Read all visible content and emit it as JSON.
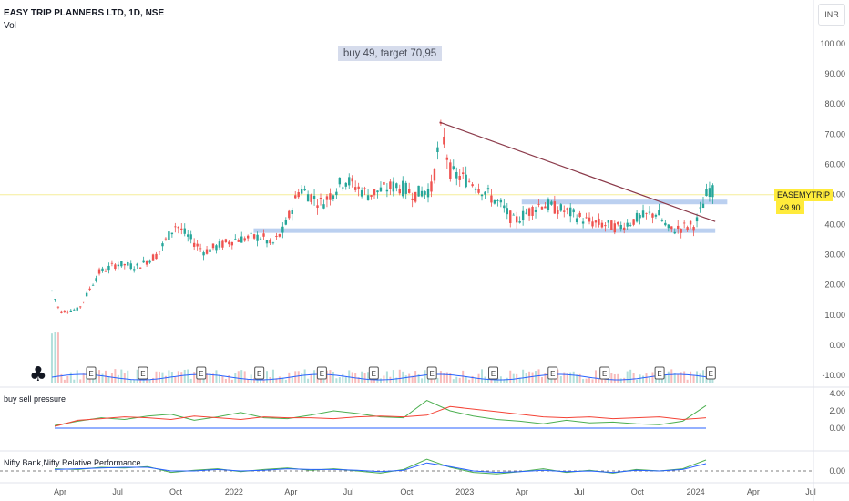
{
  "header": {
    "title": "EASY TRIP PLANNERS LTD, 1D, NSE",
    "volume_label": "Vol",
    "currency_button": "INR"
  },
  "annotation": {
    "text": "buy 49, target 70,95"
  },
  "price_tag": {
    "symbol": "EASEMYTRIP",
    "value": "49.90",
    "color": "#ffeb3b"
  },
  "panels": {
    "pressure_label": "buy sell pressure",
    "relative_label": "Nifty Bank,Nifty Relative Performance"
  },
  "colors": {
    "up": "#26a69a",
    "down": "#ef5350",
    "trendline": "#8b3a4a",
    "zone": "#bbd0f0",
    "green_line": "#4caf50",
    "red_line": "#f44336",
    "blue_line": "#2962ff"
  },
  "chart_data": [
    {
      "type": "candlestick",
      "title": "EASY TRIP PLANNERS LTD, 1D, NSE",
      "x_tick_labels": [
        "Apr",
        "Jul",
        "Oct",
        "2022",
        "Apr",
        "Jul",
        "Oct",
        "2023",
        "Apr",
        "Jul",
        "Oct",
        "2024",
        "Apr",
        "Jul"
      ],
      "x_range": [
        "2021-03",
        "2024-08"
      ],
      "y_tick_labels": [
        "100.00",
        "90.00",
        "80.00",
        "70.00",
        "60.00",
        "50.00",
        "40.00",
        "30.00",
        "20.00",
        "10.00",
        "0.00",
        "-10.00"
      ],
      "ylim": [
        -12,
        105
      ],
      "last_price": 49.9,
      "price_path": [
        {
          "x": "2021-03-19",
          "y": 18
        },
        {
          "x": "2021-04-01",
          "y": 11
        },
        {
          "x": "2021-05-01",
          "y": 12
        },
        {
          "x": "2021-06-01",
          "y": 24
        },
        {
          "x": "2021-07-01",
          "y": 27
        },
        {
          "x": "2021-08-01",
          "y": 26
        },
        {
          "x": "2021-09-01",
          "y": 30
        },
        {
          "x": "2021-10-01",
          "y": 40
        },
        {
          "x": "2021-10-20",
          "y": 36
        },
        {
          "x": "2021-11-15",
          "y": 31
        },
        {
          "x": "2022-01-01",
          "y": 35
        },
        {
          "x": "2022-02-15",
          "y": 36
        },
        {
          "x": "2022-03-01",
          "y": 33
        },
        {
          "x": "2022-03-20",
          "y": 38
        },
        {
          "x": "2022-04-15",
          "y": 52
        },
        {
          "x": "2022-05-20",
          "y": 47
        },
        {
          "x": "2022-06-25",
          "y": 55
        },
        {
          "x": "2022-08-01",
          "y": 50
        },
        {
          "x": "2022-09-15",
          "y": 53
        },
        {
          "x": "2022-10-15",
          "y": 50
        },
        {
          "x": "2022-11-10",
          "y": 52
        },
        {
          "x": "2022-11-25",
          "y": 72
        },
        {
          "x": "2022-12-10",
          "y": 57
        },
        {
          "x": "2023-01-15",
          "y": 54
        },
        {
          "x": "2023-03-01",
          "y": 46
        },
        {
          "x": "2023-03-20",
          "y": 41
        },
        {
          "x": "2023-05-01",
          "y": 47
        },
        {
          "x": "2023-06-15",
          "y": 44
        },
        {
          "x": "2023-07-15",
          "y": 41
        },
        {
          "x": "2023-09-01",
          "y": 39
        },
        {
          "x": "2023-10-01",
          "y": 42
        },
        {
          "x": "2023-11-01",
          "y": 44
        },
        {
          "x": "2023-11-20",
          "y": 38
        },
        {
          "x": "2024-01-01",
          "y": 40
        },
        {
          "x": "2024-01-22",
          "y": 52
        },
        {
          "x": "2024-02-01",
          "y": 49.9
        }
      ],
      "trendline": {
        "from": {
          "x": "2022-11-22",
          "y": 74
        },
        "to": {
          "x": "2024-02-01",
          "y": 41
        }
      },
      "zones": [
        {
          "from": "2022-02-01",
          "to": "2024-02-01",
          "y": 38
        },
        {
          "from": "2023-04-01",
          "to": "2024-02-20",
          "y": 47.5
        }
      ],
      "earnings_markers": [
        "2021-05-20",
        "2021-08-10",
        "2021-11-10",
        "2022-02-10",
        "2022-05-20",
        "2022-08-10",
        "2022-11-10",
        "2023-02-15",
        "2023-05-20",
        "2023-08-10",
        "2023-11-05",
        "2024-01-25"
      ]
    },
    {
      "type": "line",
      "title": "buy sell pressure",
      "y_tick_labels": [
        "4.00",
        "2.00",
        "0.00"
      ],
      "ylim": [
        0,
        4
      ],
      "series": [
        {
          "values": [
            0.3,
            0.8,
            1.2,
            1.0,
            1.4,
            1.6,
            0.9,
            1.3,
            1.8,
            1.2,
            1.1,
            1.5,
            2.0,
            1.7,
            1.3,
            1.2,
            3.2,
            2.0,
            1.4,
            1.0,
            0.8,
            0.5,
            0.9,
            0.6,
            0.7,
            0.5,
            0.4,
            0.8,
            2.6
          ]
        },
        {
          "values": [
            0.2,
            0.9,
            1.1,
            1.3,
            1.2,
            1.0,
            1.4,
            1.2,
            1.0,
            1.3,
            1.2,
            1.2,
            1.1,
            1.3,
            1.4,
            1.3,
            1.5,
            2.5,
            2.2,
            1.9,
            1.6,
            1.3,
            1.2,
            1.3,
            1.1,
            1.2,
            1.3,
            1.0,
            1.2
          ]
        }
      ]
    },
    {
      "type": "line",
      "title": "Nifty Bank,Nifty Relative Performance",
      "y_tick_labels": [
        "0.00"
      ],
      "series": [
        {
          "values": [
            0.3,
            0.2,
            0.5,
            0.4,
            0.6,
            -0.2,
            0.1,
            0.3,
            -0.1,
            0.2,
            0.4,
            0.1,
            0.3,
            0.0,
            -0.3,
            0.2,
            1.6,
            0.5,
            -0.2,
            -0.4,
            -0.1,
            0.3,
            -0.2,
            0.1,
            -0.3,
            0.2,
            0.0,
            0.3,
            1.5
          ]
        },
        {
          "values": [
            0.2,
            0.3,
            0.4,
            0.5,
            0.5,
            0.0,
            0.0,
            0.2,
            0.0,
            0.1,
            0.3,
            0.2,
            0.2,
            0.1,
            -0.1,
            0.1,
            1.1,
            0.6,
            0.0,
            -0.2,
            -0.1,
            0.1,
            -0.1,
            0.0,
            -0.2,
            0.1,
            0.0,
            0.2,
            1.0
          ]
        }
      ]
    }
  ]
}
